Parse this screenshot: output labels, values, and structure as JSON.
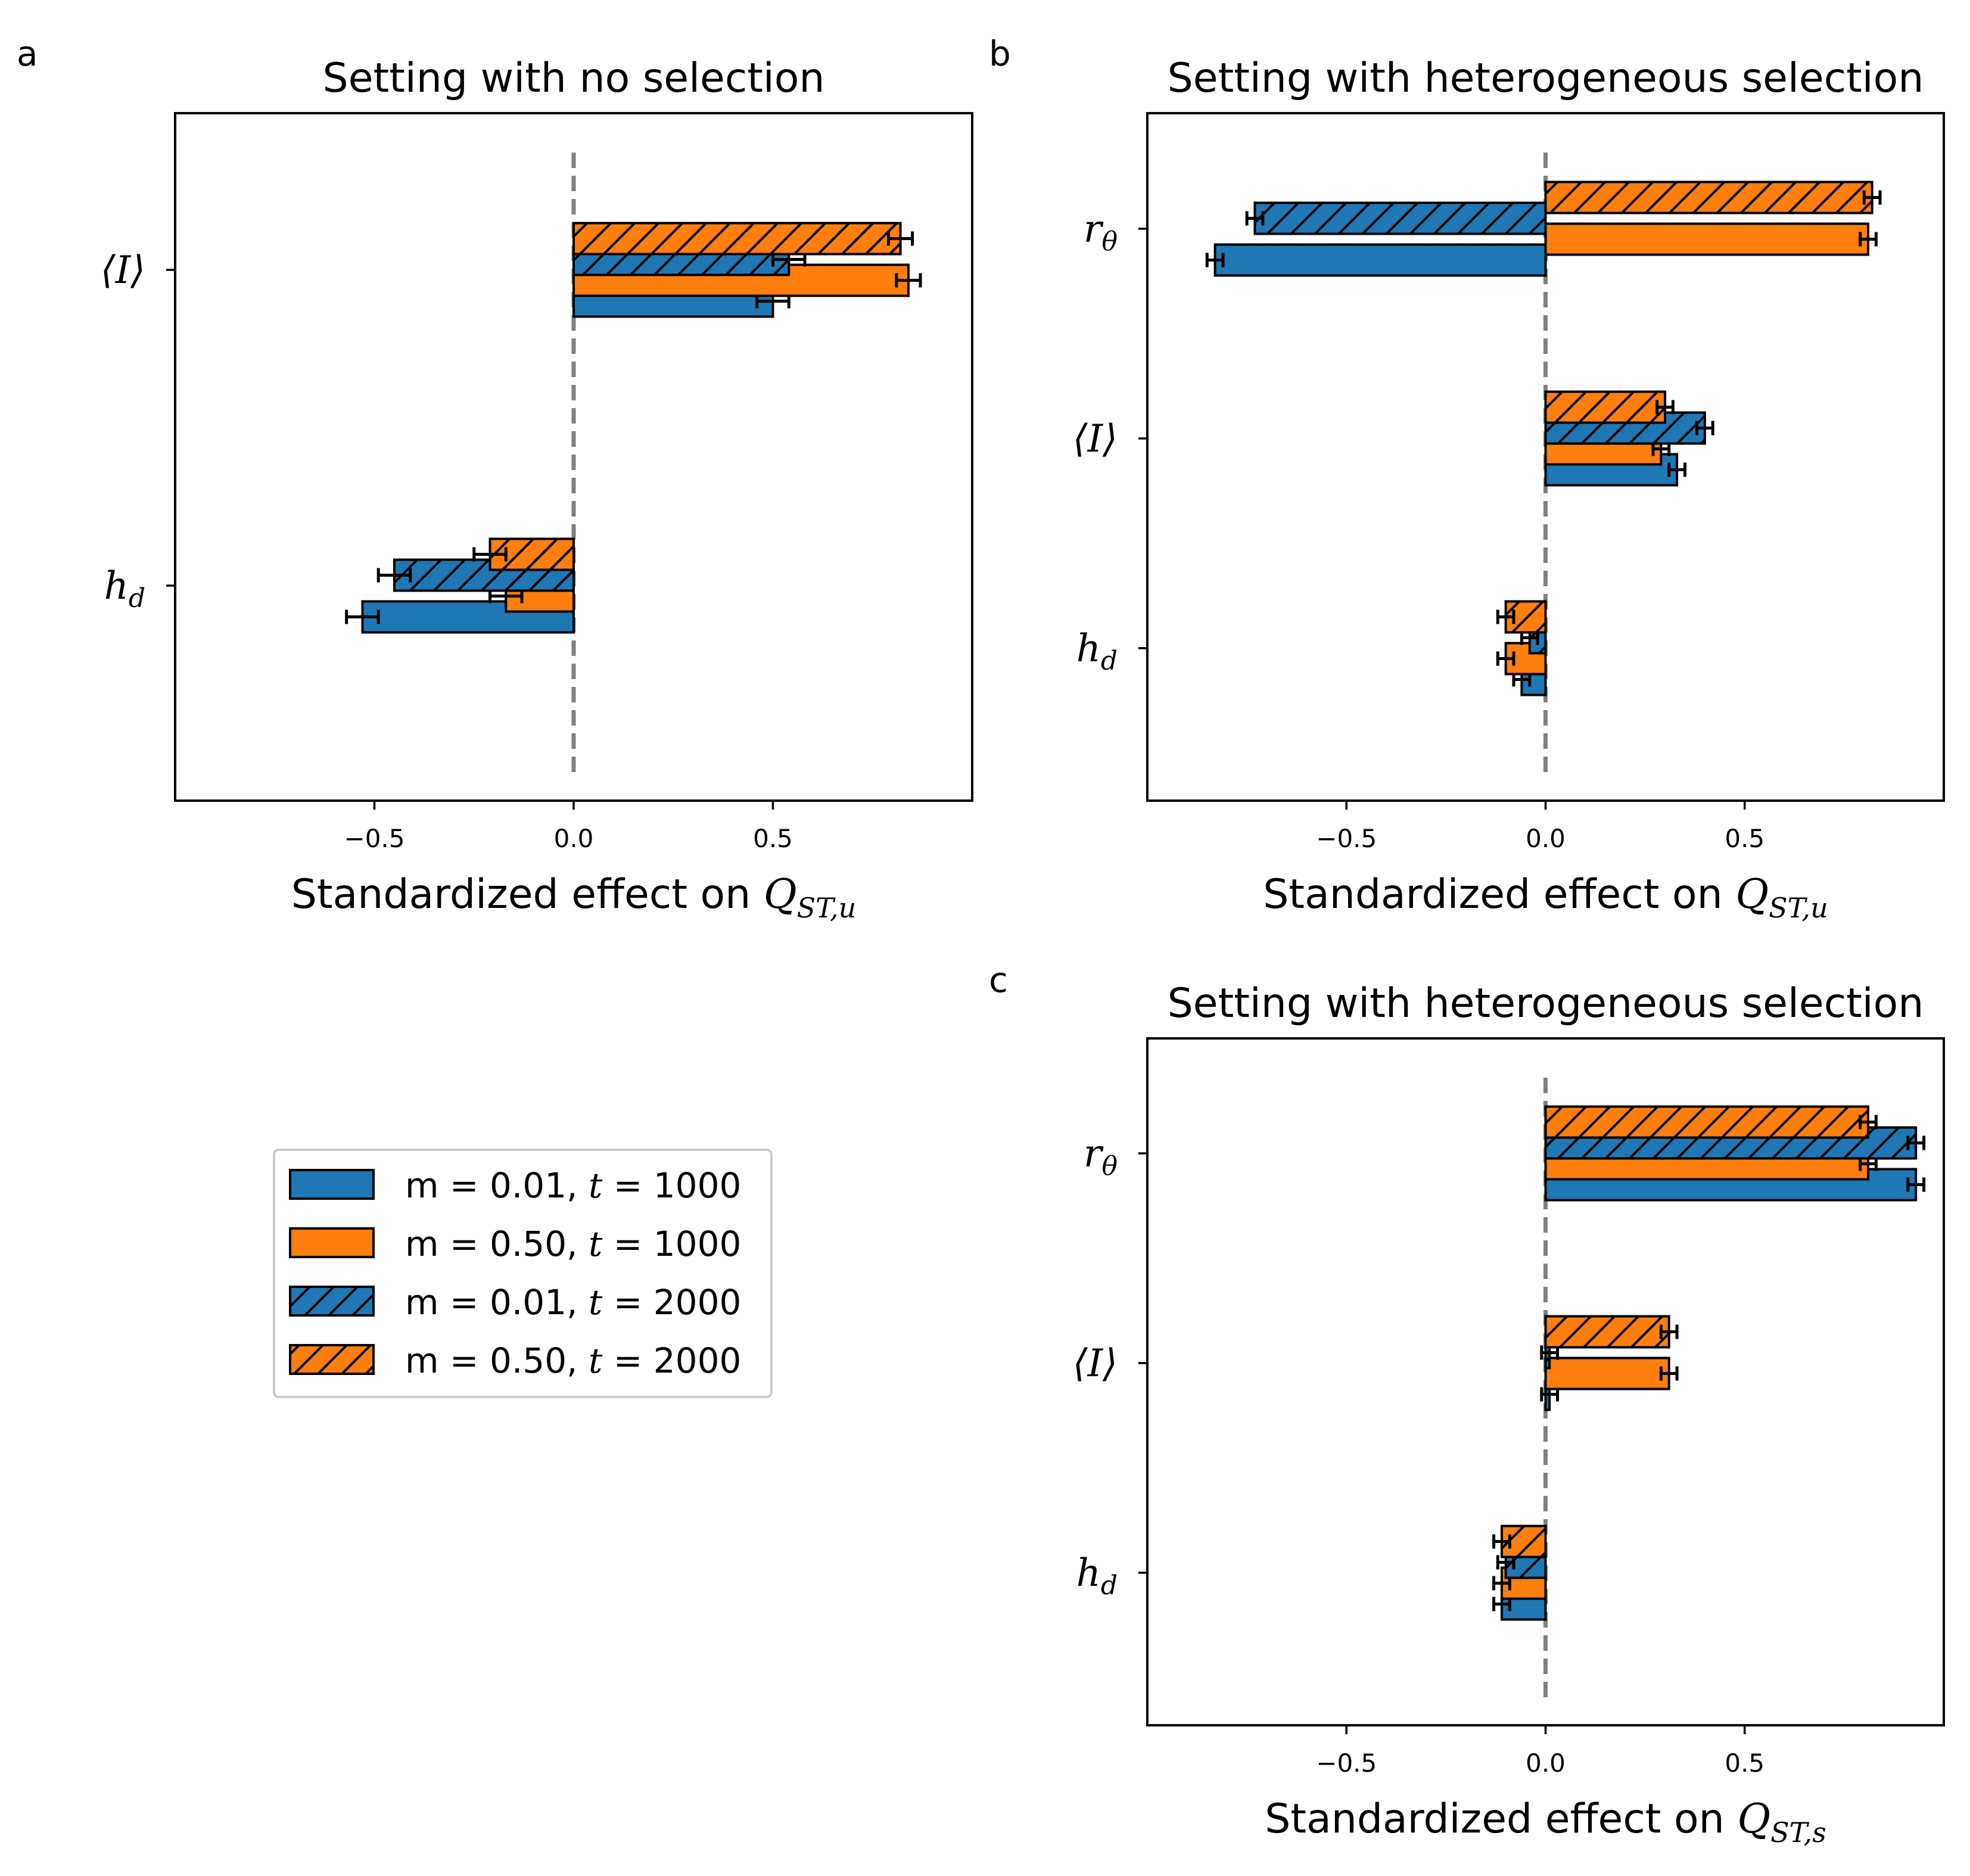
{
  "colors": {
    "blue": "#1f77b4",
    "orange": "#ff7f0e",
    "zero_line": "#808080"
  },
  "legend": {
    "placement": "center-left of lower-left area",
    "entries": [
      {
        "label": "m = 0.01, t = 1000",
        "m_text": "m = 0.01, ",
        "t_text": "t",
        "val_text": " = 1000",
        "color": "#1f77b4",
        "hatched": false
      },
      {
        "label": "m = 0.50, t = 1000",
        "m_text": "m = 0.50, ",
        "t_text": "t",
        "val_text": " = 1000",
        "color": "#ff7f0e",
        "hatched": false
      },
      {
        "label": "m = 0.01, t = 2000",
        "m_text": "m = 0.01, ",
        "t_text": "t",
        "val_text": " = 2000",
        "color": "#1f77b4",
        "hatched": true
      },
      {
        "label": "m = 0.50, t = 2000",
        "m_text": "m = 0.50, ",
        "t_text": "t",
        "val_text": " = 2000",
        "color": "#ff7f0e",
        "hatched": true
      }
    ]
  },
  "chart_data": [
    {
      "panel": "a",
      "type": "bar",
      "orientation": "horizontal",
      "title": "Setting with no selection",
      "xlabel": "Standardized effect on Q",
      "xlabel_sub": "ST,u",
      "xlim": [
        -1.0,
        1.0
      ],
      "xticks": [
        -0.5,
        0.0,
        0.5
      ],
      "xtick_labels": [
        "−0.5",
        "0.0",
        "0.5"
      ],
      "zero_line": true,
      "categories": [
        {
          "main": "⟨I⟩",
          "sub": ""
        },
        {
          "main": "h",
          "sub": "d"
        }
      ],
      "series": [
        {
          "legend": 0,
          "values": [
            0.5,
            -0.53
          ],
          "errors": [
            0.04,
            0.04
          ]
        },
        {
          "legend": 1,
          "values": [
            0.84,
            -0.17
          ],
          "errors": [
            0.03,
            0.04
          ]
        },
        {
          "legend": 2,
          "values": [
            0.54,
            -0.45
          ],
          "errors": [
            0.04,
            0.04
          ]
        },
        {
          "legend": 3,
          "values": [
            0.82,
            -0.21
          ],
          "errors": [
            0.03,
            0.04
          ]
        }
      ]
    },
    {
      "panel": "b",
      "type": "bar",
      "orientation": "horizontal",
      "title": "Setting with heterogeneous selection",
      "xlabel": "Standardized effect on Q",
      "xlabel_sub": "ST,u",
      "xlim": [
        -1.0,
        1.0
      ],
      "xticks": [
        -0.5,
        0.0,
        0.5
      ],
      "xtick_labels": [
        "−0.5",
        "0.0",
        "0.5"
      ],
      "zero_line": true,
      "categories": [
        {
          "main": "r",
          "sub": "θ"
        },
        {
          "main": "⟨I⟩",
          "sub": ""
        },
        {
          "main": "h",
          "sub": "d"
        }
      ],
      "series": [
        {
          "legend": 0,
          "values": [
            -0.83,
            0.33,
            -0.06
          ],
          "errors": [
            0.02,
            0.02,
            0.02
          ]
        },
        {
          "legend": 1,
          "values": [
            0.81,
            0.29,
            -0.1
          ],
          "errors": [
            0.02,
            0.02,
            0.02
          ]
        },
        {
          "legend": 2,
          "values": [
            -0.73,
            0.4,
            -0.04
          ],
          "errors": [
            0.02,
            0.02,
            0.02
          ]
        },
        {
          "legend": 3,
          "values": [
            0.82,
            0.3,
            -0.1
          ],
          "errors": [
            0.02,
            0.02,
            0.02
          ]
        }
      ]
    },
    {
      "panel": "c",
      "type": "bar",
      "orientation": "horizontal",
      "title": "Setting with heterogeneous selection",
      "xlabel": "Standardized effect on Q",
      "xlabel_sub": "ST,s",
      "xlim": [
        -1.0,
        1.0
      ],
      "xticks": [
        -0.5,
        0.0,
        0.5
      ],
      "xtick_labels": [
        "−0.5",
        "0.0",
        "0.5"
      ],
      "zero_line": true,
      "categories": [
        {
          "main": "r",
          "sub": "θ"
        },
        {
          "main": "⟨I⟩",
          "sub": ""
        },
        {
          "main": "h",
          "sub": "d"
        }
      ],
      "series": [
        {
          "legend": 0,
          "values": [
            0.93,
            0.01,
            -0.11
          ],
          "errors": [
            0.02,
            0.02,
            0.02
          ]
        },
        {
          "legend": 1,
          "values": [
            0.81,
            0.31,
            -0.11
          ],
          "errors": [
            0.02,
            0.02,
            0.02
          ]
        },
        {
          "legend": 2,
          "values": [
            0.93,
            0.01,
            -0.1
          ],
          "errors": [
            0.02,
            0.02,
            0.02
          ]
        },
        {
          "legend": 3,
          "values": [
            0.81,
            0.31,
            -0.11
          ],
          "errors": [
            0.02,
            0.02,
            0.02
          ]
        }
      ]
    }
  ]
}
